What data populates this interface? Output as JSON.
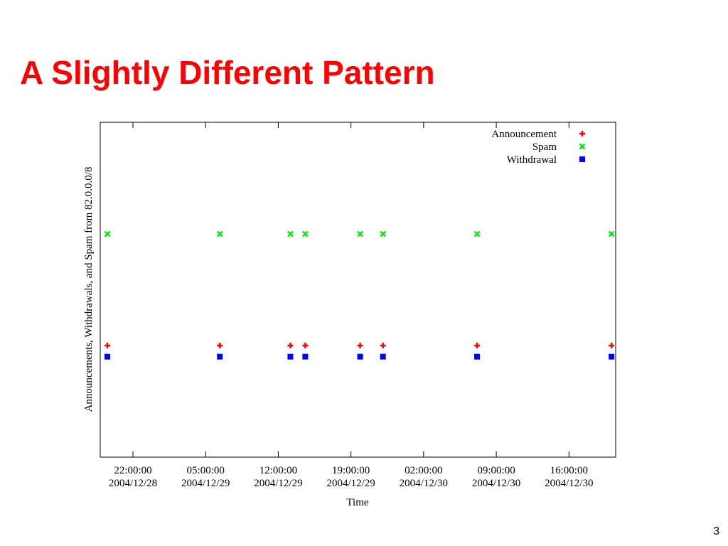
{
  "slide": {
    "title": "A Slightly Different Pattern",
    "page_number": "3"
  },
  "chart_data": {
    "type": "scatter",
    "y_label": "Announcements, Withdrawals, and Spam from 82.0.0.0/8",
    "x_label": "Time",
    "x": [
      "2004/12/28 19:32:00",
      "2004/12/29 06:22:00",
      "2004/12/29 13:10:00",
      "2004/12/29 14:36:00",
      "2004/12/29 19:53:00",
      "2004/12/29 22:05:00",
      "2004/12/30 07:09:00",
      "2004/12/30 20:06:00"
    ],
    "series": [
      {
        "name": "Announcement",
        "color": "#ff0000",
        "marker": "plus",
        "values": [
          1,
          1,
          1,
          1,
          1,
          1,
          1,
          1
        ]
      },
      {
        "name": "Spam",
        "color": "#00ee00",
        "marker": "cross",
        "values": [
          2,
          2,
          2,
          2,
          2,
          2,
          2,
          2
        ]
      },
      {
        "name": "Withdrawal",
        "color": "#0000ff",
        "marker": "square",
        "values": [
          0.9,
          0.9,
          0.9,
          0.9,
          0.9,
          0.9,
          0.9,
          0.9
        ]
      }
    ],
    "xlim": [
      "2004/12/28 18:51:00",
      "2004/12/30 20:30:00"
    ],
    "xticks": [
      {
        "value": "2004/12/28 22:00:00",
        "label": [
          "22:00:00",
          "2004/12/28"
        ]
      },
      {
        "value": "2004/12/29 05:00:00",
        "label": [
          "05:00:00",
          "2004/12/29"
        ]
      },
      {
        "value": "2004/12/29 12:00:00",
        "label": [
          "12:00:00",
          "2004/12/29"
        ]
      },
      {
        "value": "2004/12/29 19:00:00",
        "label": [
          "19:00:00",
          "2004/12/29"
        ]
      },
      {
        "value": "2004/12/30 02:00:00",
        "label": [
          "02:00:00",
          "2004/12/30"
        ]
      },
      {
        "value": "2004/12/30 09:00:00",
        "label": [
          "09:00:00",
          "2004/12/30"
        ]
      },
      {
        "value": "2004/12/30 16:00:00",
        "label": [
          "16:00:00",
          "2004/12/30"
        ]
      }
    ],
    "ylim": [
      0,
      3
    ],
    "grid": false,
    "legend": "top-right"
  }
}
